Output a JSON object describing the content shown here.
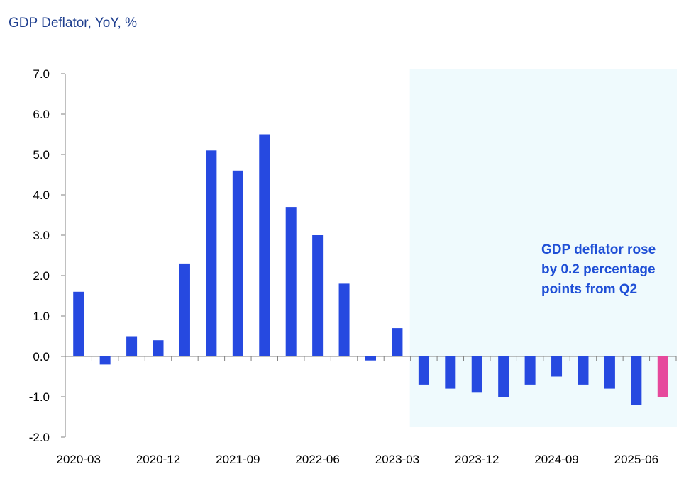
{
  "chart_data": {
    "type": "bar",
    "title": "GDP Deflator,  YoY, %",
    "xlabel": "",
    "ylabel": "",
    "ylim": [
      -2.0,
      7.0
    ],
    "yticks": [
      "7.0",
      "6.0",
      "5.0",
      "4.0",
      "3.0",
      "2.0",
      "1.0",
      "0.0",
      "-1.0",
      "-2.0"
    ],
    "categories": [
      "2020-03",
      "2020-06",
      "2020-09",
      "2020-12",
      "2021-03",
      "2021-06",
      "2021-09",
      "2021-12",
      "2022-03",
      "2022-06",
      "2022-09",
      "2022-12",
      "2023-03",
      "2023-06",
      "2023-09",
      "2023-12",
      "2024-03",
      "2024-06",
      "2024-09",
      "2024-12",
      "2025-03",
      "2025-06",
      "2025-09"
    ],
    "x_tick_labels": [
      "2020-03",
      "2020-12",
      "2021-09",
      "2022-06",
      "2023-03",
      "2023-12",
      "2024-09",
      "2025-06"
    ],
    "values": [
      1.6,
      -0.2,
      0.5,
      0.4,
      2.3,
      5.1,
      4.6,
      5.5,
      3.7,
      3.0,
      1.8,
      -0.1,
      0.7,
      -0.7,
      -0.8,
      -0.9,
      -1.0,
      -0.7,
      -0.5,
      -0.7,
      -0.8,
      -1.2,
      -1.0
    ],
    "bar_colors": {
      "default": "#2649e0",
      "latest": "#e6499c"
    },
    "highlight_color": "#effafd",
    "annotation": [
      "GDP deflator rose",
      "by 0.2 percentage",
      "points from Q2"
    ]
  }
}
